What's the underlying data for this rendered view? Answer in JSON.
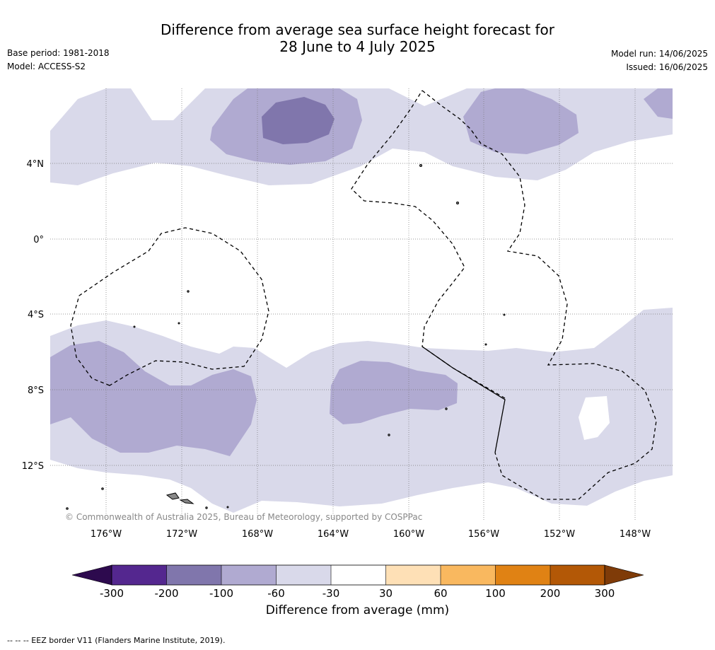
{
  "header": {
    "title_line1": "Difference from average sea surface height forecast for",
    "title_line2": "28 June to 4 July 2025",
    "base_period": "Base period: 1981-2018",
    "model": "Model: ACCESS-S2",
    "model_run": "Model run: 14/06/2025",
    "issued": "Issued: 16/06/2025"
  },
  "map": {
    "lat_labels": [
      "4°N",
      "0°",
      "4°S",
      "8°S",
      "12°S"
    ],
    "lon_labels": [
      "176°W",
      "172°W",
      "168°W",
      "164°W",
      "160°W",
      "156°W",
      "152°W",
      "148°W"
    ],
    "copyright": "© Commonwealth of Australia 2025, Bureau of Meteorology, supported by COSPPac",
    "shading_colors": {
      "-100 to -60": "#b0aad1",
      "-60 to -30": "#d9d9ea",
      "-200 to -100": "#8076ac",
      "land": "#888888"
    }
  },
  "colorbar": {
    "title": "Difference from average (mm)",
    "tick_labels": [
      "-300",
      "-200",
      "-100",
      "-60",
      "-30",
      "30",
      "60",
      "100",
      "200",
      "300"
    ],
    "colors": {
      "below_min": "#2d0a4e",
      "bins": [
        "#54278f",
        "#8076ac",
        "#b0aad1",
        "#d9d9ea",
        "#ffffff",
        "#fee0b6",
        "#f9b85f",
        "#e08214",
        "#b35806"
      ],
      "above_max": "#7f3b08"
    }
  },
  "footnote": "-- -- -- EEZ border V11 (Flanders Marine Institute, 2019)."
}
